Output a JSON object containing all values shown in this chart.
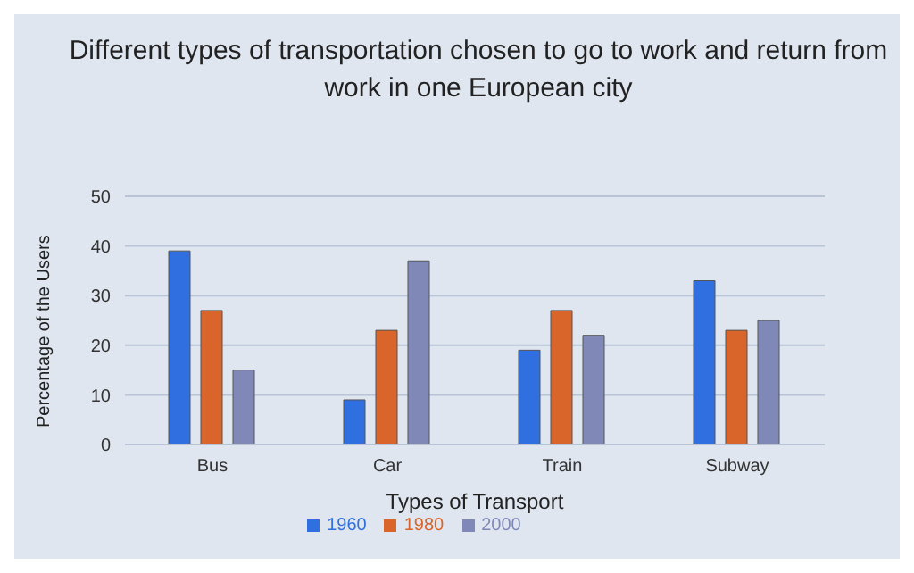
{
  "chart_data": {
    "type": "bar",
    "title": "Different types of transportation chosen to go to work and return from work in one European city",
    "xlabel": "Types of Transport",
    "ylabel": "Percentage of the Users",
    "categories": [
      "Bus",
      "Car",
      "Train",
      "Subway"
    ],
    "series": [
      {
        "name": "1960",
        "color": "#2f6fdf",
        "values": [
          39,
          9,
          19,
          33
        ]
      },
      {
        "name": "1980",
        "color": "#d9652a",
        "values": [
          27,
          23,
          27,
          23
        ]
      },
      {
        "name": "2000",
        "color": "#8088b8",
        "values": [
          15,
          37,
          22,
          25
        ]
      }
    ],
    "ylim": [
      0,
      50
    ],
    "yticks": [
      0,
      10,
      20,
      30,
      40,
      50
    ],
    "grid": "y",
    "legend": "bottom"
  }
}
